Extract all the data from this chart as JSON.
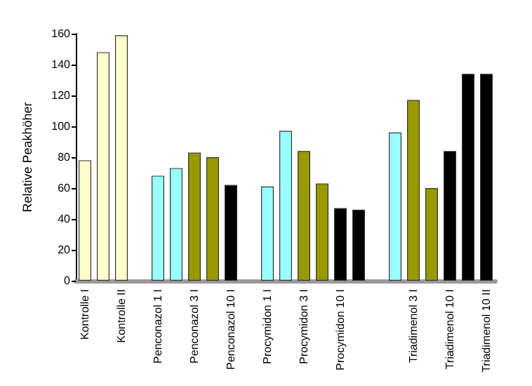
{
  "chart_data": {
    "type": "bar",
    "ylabel": "Relative Peakhöher",
    "categories": [
      "Kontrolle I",
      null,
      "Kontrolle II",
      null,
      "Penconazol 1 I",
      null,
      "Penconazol 3 I",
      null,
      "Penconazol 10 I",
      null,
      "Procymidon 1 I",
      null,
      "Procymidon 3 I",
      null,
      "Procymidon 10 I",
      null,
      null,
      null,
      "Triadimenol 3 I",
      null,
      "Triadimenol 10 I",
      null,
      "Triadimenol 10 II"
    ],
    "values": [
      78,
      148,
      159,
      null,
      68,
      73,
      83,
      80,
      62,
      null,
      61,
      97,
      84,
      63,
      47,
      46,
      null,
      96,
      117,
      60,
      84,
      134,
      134
    ],
    "colors": [
      "#ffffcc",
      "#ffffcc",
      "#ffffcc",
      null,
      "#99ffff",
      "#99ffff",
      "#999900",
      "#999900",
      "#000000",
      null,
      "#99ffff",
      "#99ffff",
      "#999900",
      "#999900",
      "#000000",
      "#000000",
      null,
      "#99ffff",
      "#999900",
      "#999900",
      "#000000",
      "#000000",
      "#000000"
    ],
    "ylim": [
      0,
      160
    ],
    "yticks": [
      0,
      20,
      40,
      60,
      80,
      100,
      120,
      140,
      160
    ]
  }
}
